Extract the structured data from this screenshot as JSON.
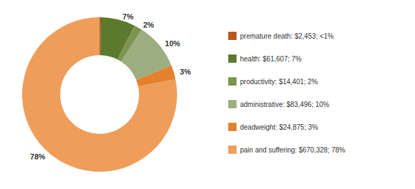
{
  "chart_data": {
    "type": "pie",
    "categories": [
      "premature death: $2,453; <1%",
      "health: $61,607; 7%",
      "productivity: $14,401; 2%",
      "administrative: $83,496; 10%",
      "deadweight: $24,875; 3%",
      "pain and suffering: $670,328; 78%"
    ],
    "values": [
      0.29,
      7.19,
      1.68,
      9.74,
      2.9,
      78.2
    ],
    "value_labels": [
      null,
      "7%",
      "2%",
      "10%",
      "3%",
      "78%"
    ],
    "data_labels": true,
    "colors": [
      "#b8561e",
      "#5c7a2e",
      "#7d9450",
      "#9cae80",
      "#e4812f",
      "#ee9e5a"
    ],
    "legend": "right"
  }
}
